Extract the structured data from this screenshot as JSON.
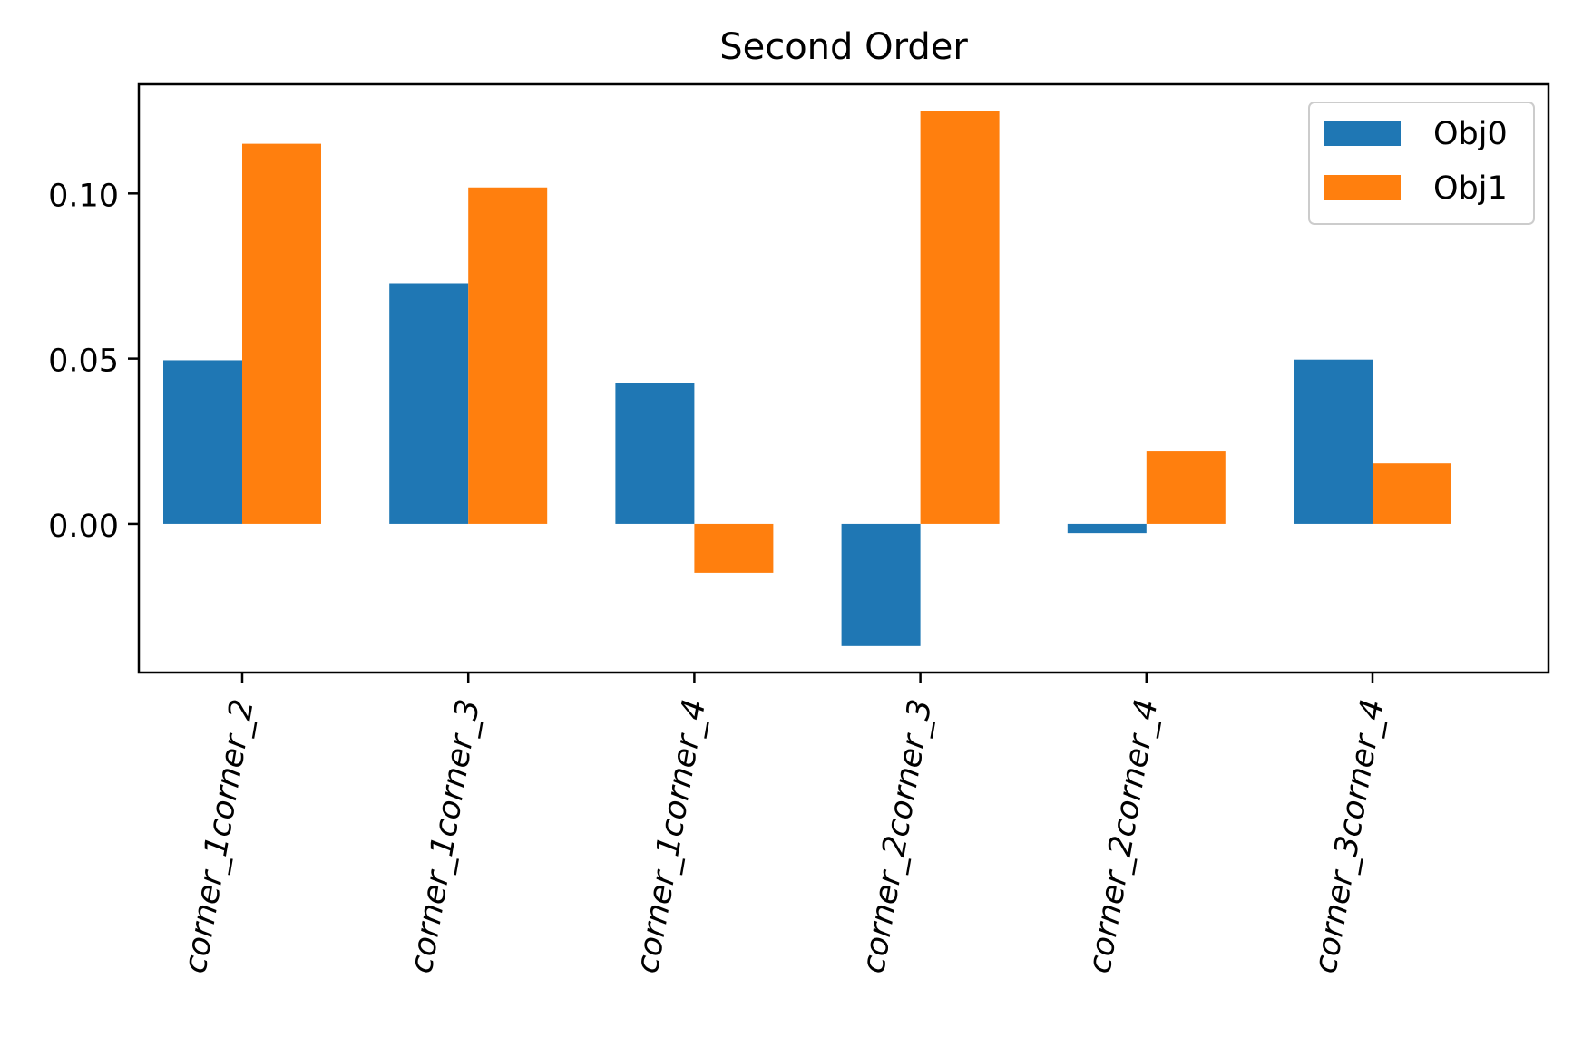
{
  "chart_data": {
    "type": "bar",
    "title": "Second Order",
    "xlabel": "",
    "ylabel": "",
    "categories": [
      "corner_1corner_2",
      "corner_1corner_3",
      "corner_1corner_4",
      "corner_2corner_3",
      "corner_2corner_4",
      "corner_3corner_4"
    ],
    "series": [
      {
        "name": "Obj0",
        "color": "#1f77b4",
        "values": [
          0.0495,
          0.0728,
          0.0425,
          -0.037,
          -0.0028,
          0.0497
        ]
      },
      {
        "name": "Obj1",
        "color": "#ff7f0e",
        "values": [
          0.115,
          0.1018,
          -0.0148,
          0.125,
          0.0219,
          0.0183
        ]
      }
    ],
    "ylim": [
      -0.045,
      0.133
    ],
    "yticks": [
      0.0,
      0.05,
      0.1
    ],
    "ytick_labels": [
      "0.00",
      "0.05",
      "0.10"
    ],
    "grid": false,
    "legend_position": "top-right",
    "xtick_rotation": 80
  }
}
